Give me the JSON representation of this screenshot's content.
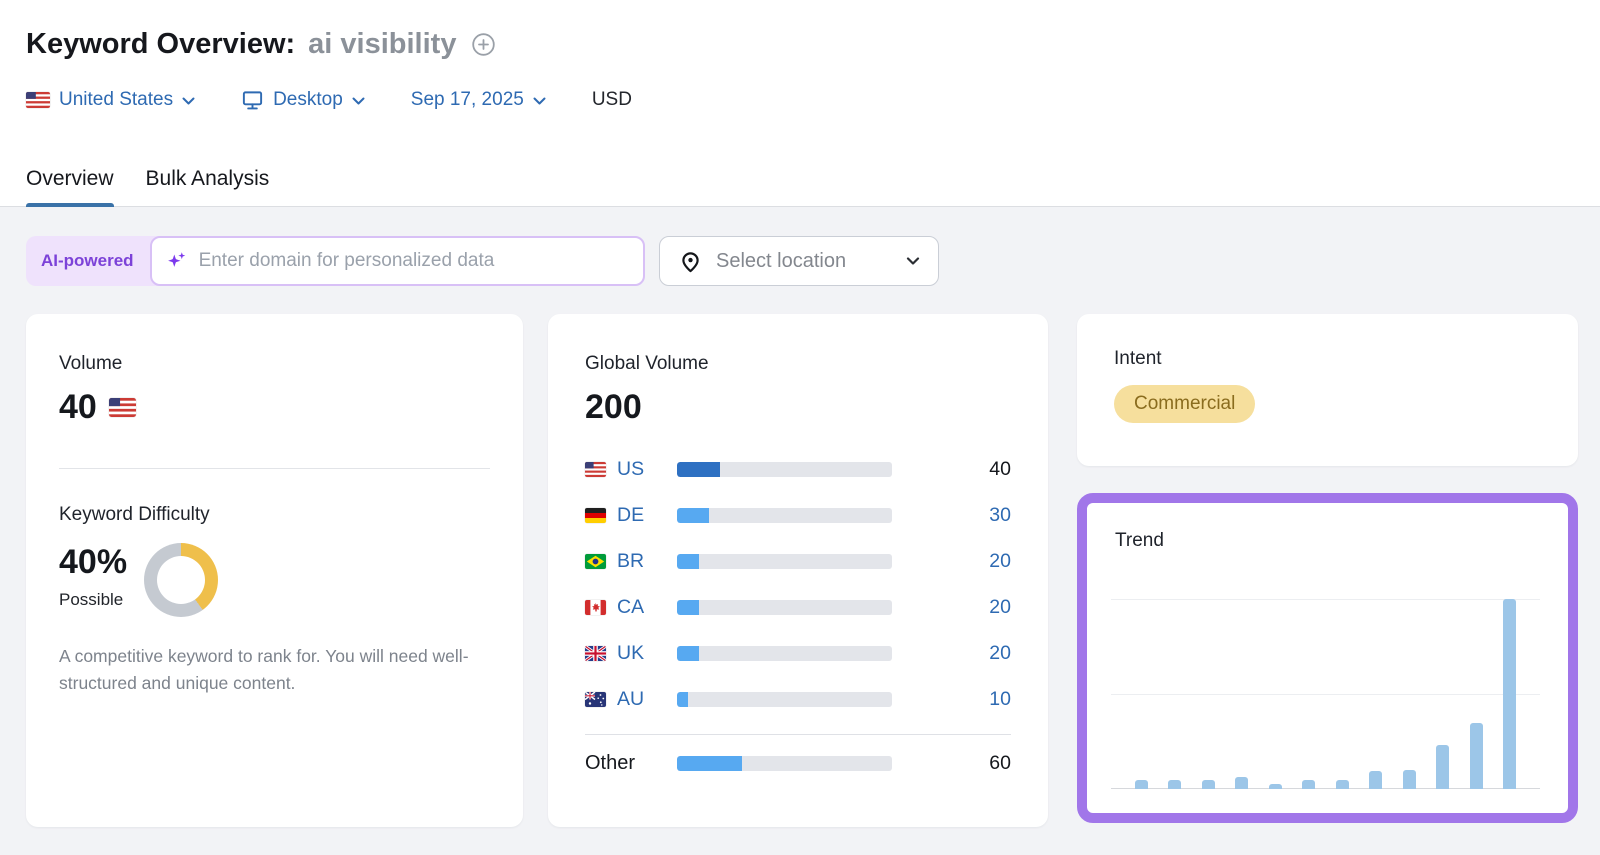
{
  "header": {
    "title": "Keyword Overview:",
    "keyword": "ai visibility",
    "add_keyword_icon": "plus-circle-icon"
  },
  "filters": {
    "country": "United States",
    "device": "Desktop",
    "date": "Sep 17, 2025",
    "currency": "USD"
  },
  "tabs": [
    {
      "label": "Overview",
      "active": true
    },
    {
      "label": "Bulk Analysis",
      "active": false
    }
  ],
  "personalization": {
    "badge": "AI-powered",
    "input_placeholder": "Enter domain for personalized data",
    "location_button": "Select location"
  },
  "volume_card": {
    "label": "Volume",
    "value": "40",
    "kd_label": "Keyword Difficulty",
    "kd_value": "40%",
    "kd_percent": 40,
    "kd_level": "Possible",
    "kd_description": "A competitive keyword to rank for. You will need well-structured and unique content."
  },
  "global_volume_card": {
    "label": "Global Volume",
    "total": "200",
    "rows": [
      {
        "code": "US",
        "value": "40",
        "percent": 20,
        "primary": true
      },
      {
        "code": "DE",
        "value": "30",
        "percent": 15
      },
      {
        "code": "BR",
        "value": "20",
        "percent": 10
      },
      {
        "code": "CA",
        "value": "20",
        "percent": 10
      },
      {
        "code": "UK",
        "value": "20",
        "percent": 10
      },
      {
        "code": "AU",
        "value": "10",
        "percent": 5
      }
    ],
    "other": {
      "label": "Other",
      "value": "60",
      "percent": 30
    }
  },
  "intent_card": {
    "label": "Intent",
    "badge": "Commercial"
  },
  "trend_card": {
    "label": "Trend",
    "bars_percent": [
      4.5,
      4.5,
      4.5,
      6.5,
      2.5,
      4.5,
      4.5,
      9.5,
      10,
      23,
      35,
      100
    ]
  },
  "colors": {
    "accent_blue": "#2e6ab2",
    "tab_underline": "#3a72a8",
    "bar_primary": "#2e70c2",
    "bar_secondary": "#57a9f1",
    "bar_track": "#e3e5ea",
    "kd_arc": "#efbf4b",
    "kd_track": "#c5cad1",
    "intent_bg": "#f6df9d",
    "intent_text": "#8a6c1e",
    "trend_bar": "#9cc6e8",
    "trend_border": "#a176e9",
    "ai_badge_bg": "#efe2fc",
    "ai_badge_text": "#7c42d8"
  },
  "chart_data": [
    {
      "type": "pie",
      "subtype": "donut",
      "title": "Keyword Difficulty",
      "value": 40,
      "max": 100,
      "center_label": "40%",
      "level": "Possible",
      "segments": [
        {
          "name": "difficulty",
          "value": 40,
          "color": "#efbf4b"
        },
        {
          "name": "remaining",
          "value": 60,
          "color": "#c5cad1"
        }
      ]
    },
    {
      "type": "bar",
      "orientation": "horizontal",
      "title": "Global Volume",
      "total": 200,
      "categories": [
        "US",
        "DE",
        "BR",
        "CA",
        "UK",
        "AU",
        "Other"
      ],
      "values": [
        40,
        30,
        20,
        20,
        20,
        10,
        60
      ],
      "xlim": [
        0,
        200
      ]
    },
    {
      "type": "bar",
      "title": "Trend",
      "categories": [
        "m1",
        "m2",
        "m3",
        "m4",
        "m5",
        "m6",
        "m7",
        "m8",
        "m9",
        "m10",
        "m11",
        "m12"
      ],
      "values_percent_of_max": [
        4.5,
        4.5,
        4.5,
        6.5,
        2.5,
        4.5,
        4.5,
        9.5,
        10,
        23,
        35,
        100
      ],
      "estimated_values_if_max_40": [
        2,
        2,
        2,
        3,
        1,
        2,
        2,
        4,
        4,
        9,
        14,
        40
      ],
      "ylim": [
        0,
        100
      ],
      "gridlines": [
        0,
        50,
        100
      ],
      "axis_tick_labels_visible": false
    }
  ]
}
